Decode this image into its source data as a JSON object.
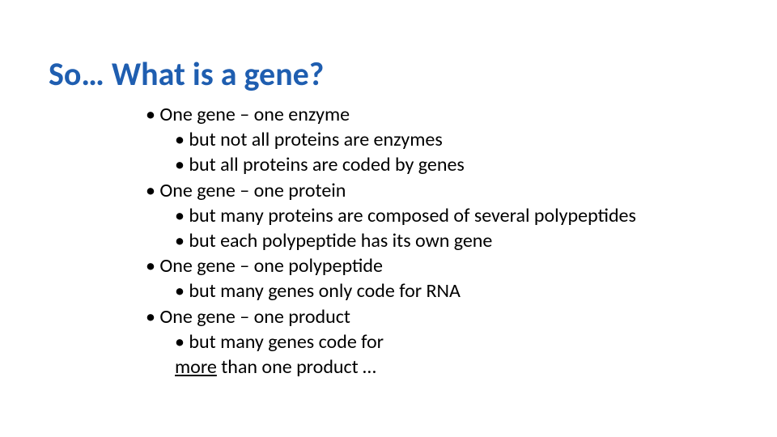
{
  "title": {
    "text": "So… What is a gene?",
    "color": "#1f5eb0"
  },
  "body_color": "#000000",
  "lines": [
    {
      "level": 1,
      "text": "One gene – one enzyme"
    },
    {
      "level": 2,
      "text": "but not all proteins are enzymes"
    },
    {
      "level": 2,
      "text": "but all proteins are coded by genes"
    },
    {
      "level": 1,
      "text": "One gene – one protein"
    },
    {
      "level": 2,
      "text": "but many proteins are composed of several polypeptides"
    },
    {
      "level": 2,
      "text": "but each polypeptide has its own gene"
    },
    {
      "level": 1,
      "text": "One gene – one polypeptide"
    },
    {
      "level": 2,
      "text": "but many genes only code for RNA"
    },
    {
      "level": 1,
      "text": "One gene – one product"
    },
    {
      "level": 2,
      "text": "but many genes code for"
    }
  ],
  "last_line": {
    "underlined": "more",
    "rest": " than one product …"
  }
}
